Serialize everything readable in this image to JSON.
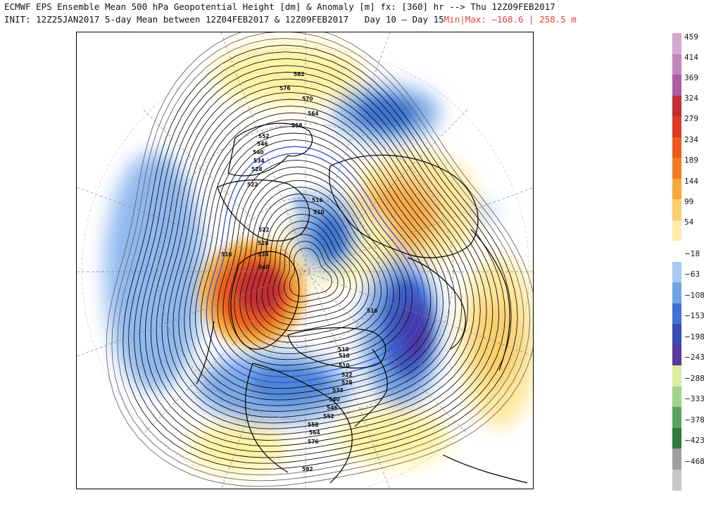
{
  "header": {
    "line1": "ECMWF EPS Ensemble Mean 500 hPa Geopotential Height [dm] & Anomaly [m] fx: [360] hr --> Thu 12Z09FEB2017",
    "line2_prefix": "INIT: 12Z25JAN2017 5-day Mean between 12Z04FEB2017 & 12Z09FEB2017   Day 10 – Day 15",
    "line2_minmax": "Min|Max: –168.6 | 258.5 m"
  },
  "colorbar": {
    "segments": [
      {
        "color": "#d4a8cf"
      },
      {
        "color": "#c284bb"
      },
      {
        "color": "#ab5ea6"
      },
      {
        "color": "#c42d31"
      },
      {
        "color": "#dd3b25"
      },
      {
        "color": "#ec5a1d"
      },
      {
        "color": "#f27d1f"
      },
      {
        "color": "#f6a93a"
      },
      {
        "color": "#fbcf6e"
      },
      {
        "color": "#fdebaa"
      },
      {
        "color": "#ffffff"
      },
      {
        "color": "#a8cbf0"
      },
      {
        "color": "#6fa5e4"
      },
      {
        "color": "#3d74d1"
      },
      {
        "color": "#3a4bb3"
      },
      {
        "color": "#5b3aa0"
      },
      {
        "color": "#dcefa1"
      },
      {
        "color": "#9fd489"
      },
      {
        "color": "#5aa462"
      },
      {
        "color": "#2d7c3b"
      },
      {
        "color": "#9f9f9f"
      },
      {
        "color": "#c8c8c8"
      }
    ],
    "labels": [
      "459",
      "414",
      "369",
      "324",
      "279",
      "234",
      "189",
      "144",
      "99",
      "54",
      "−18",
      "−63",
      "−108",
      "−153",
      "−198",
      "−243",
      "−288",
      "−333",
      "−378",
      "−423",
      "−468"
    ]
  },
  "contour_labels": [
    {
      "t": "582"
    },
    {
      "t": "576"
    },
    {
      "t": "570"
    },
    {
      "t": "564"
    },
    {
      "t": "558"
    },
    {
      "t": "552"
    },
    {
      "t": "546"
    },
    {
      "t": "540"
    },
    {
      "t": "534"
    },
    {
      "t": "528"
    },
    {
      "t": "522"
    },
    {
      "t": "516"
    },
    {
      "t": "510"
    },
    {
      "t": "516"
    },
    {
      "t": "522"
    },
    {
      "t": "528"
    },
    {
      "t": "534"
    },
    {
      "t": "540"
    },
    {
      "t": "516"
    },
    {
      "t": "510"
    },
    {
      "t": "516"
    },
    {
      "t": "510"
    },
    {
      "t": "522"
    },
    {
      "t": "528"
    },
    {
      "t": "534"
    },
    {
      "t": "540"
    },
    {
      "t": "546"
    },
    {
      "t": "552"
    },
    {
      "t": "558"
    },
    {
      "t": "564"
    },
    {
      "t": "576"
    },
    {
      "t": "582"
    }
  ],
  "anomaly_colors": {
    "pos_light": "#fff6a8",
    "pos_mid": "#fbd36b",
    "pos_strong": "#f08a2a",
    "pos_max": "#c81e1e",
    "neg_light": "#a9cbf1",
    "neg_mid": "#6d9fe3",
    "neg_strong": "#3b5fcb",
    "neg_max": "#3a2a9e"
  }
}
